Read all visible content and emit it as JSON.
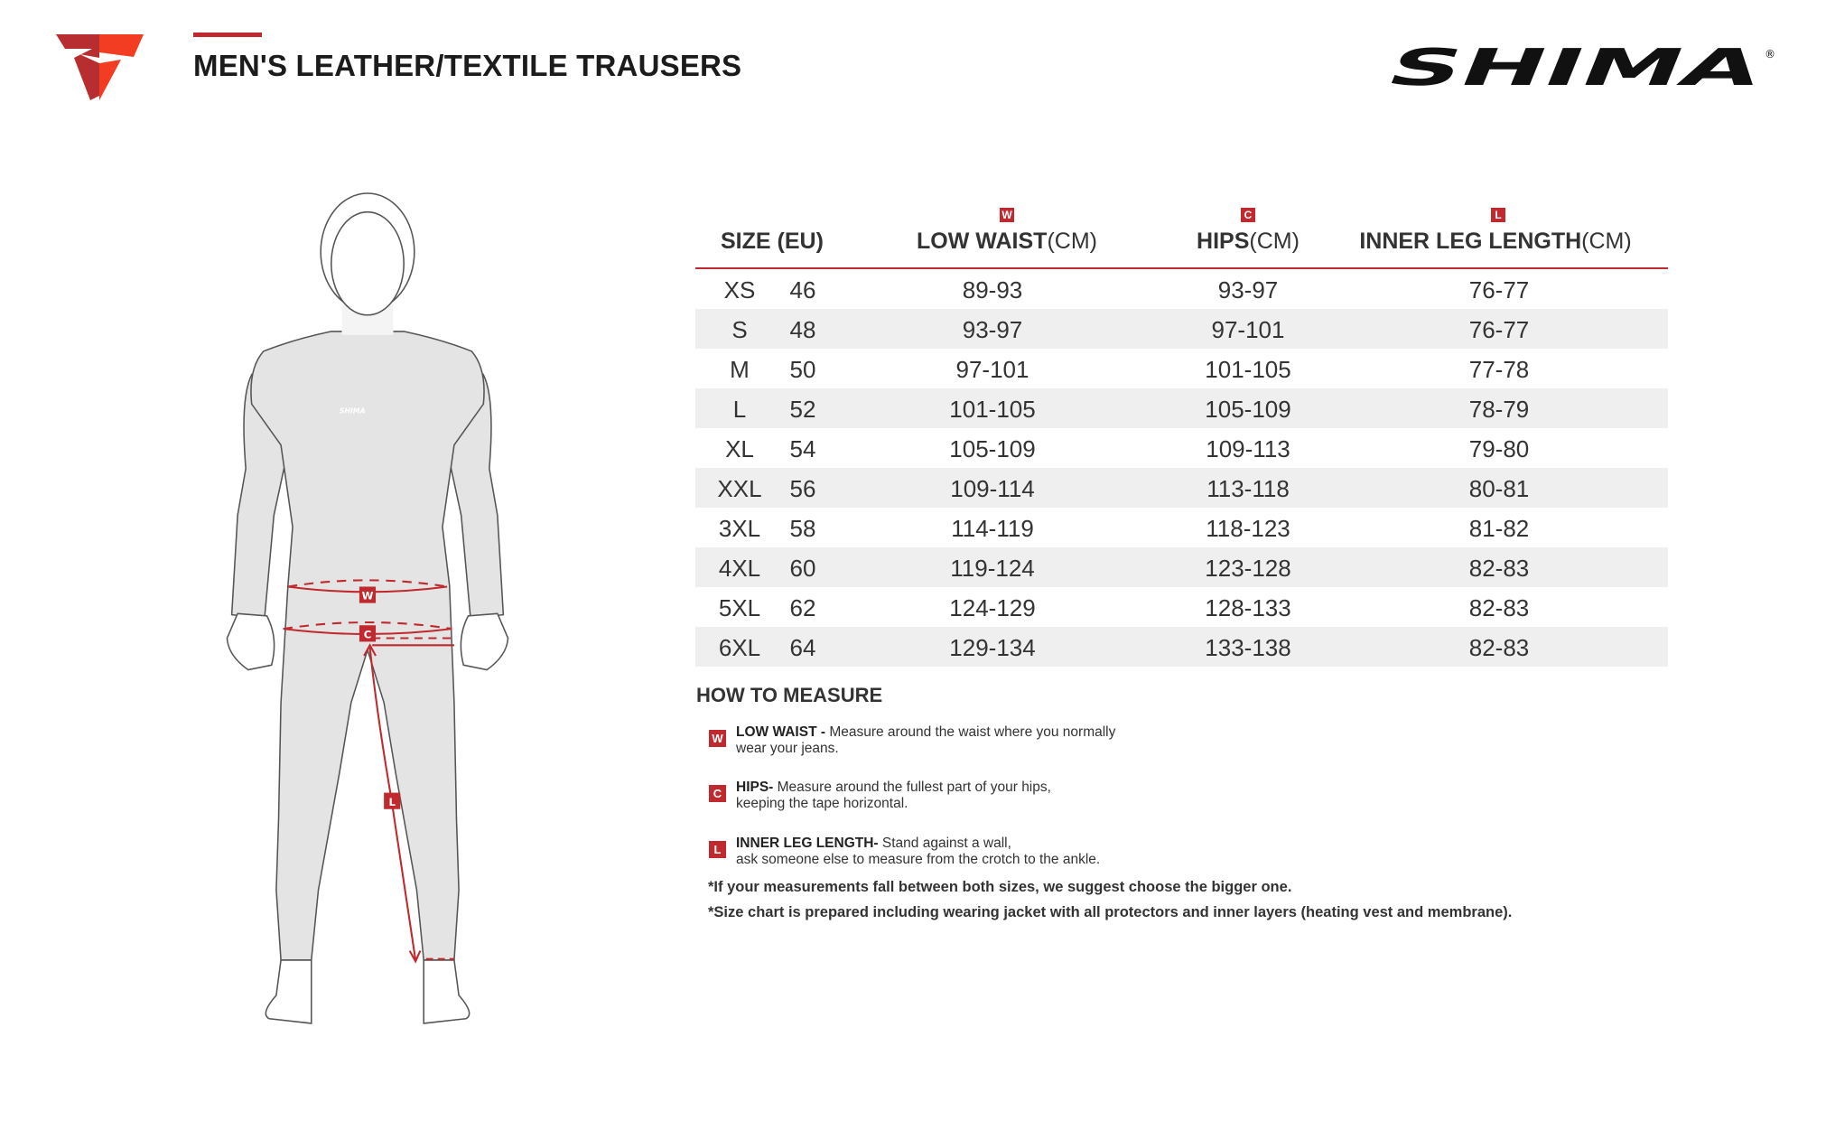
{
  "header": {
    "title": "MEN'S LEATHER/TEXTILE TRAUSERS",
    "brand_logo": "SHIMA",
    "brand_mark": "®",
    "accent_color": "#c0292d"
  },
  "table": {
    "columns": {
      "size": "SIZE (EU)",
      "waist": {
        "badge": "W",
        "label": "LOW WAIST",
        "unit": "(CM)"
      },
      "hips": {
        "badge": "C",
        "label": "HIPS",
        "unit": "(CM)"
      },
      "leg": {
        "badge": "L",
        "label": "INNER LEG LENGTH",
        "unit": "(CM)"
      }
    },
    "rows": [
      {
        "size": "XS",
        "eu": "46",
        "waist": "89-93",
        "hips": "93-97",
        "leg": "76-77"
      },
      {
        "size": "S",
        "eu": "48",
        "waist": "93-97",
        "hips": "97-101",
        "leg": "76-77"
      },
      {
        "size": "M",
        "eu": "50",
        "waist": "97-101",
        "hips": "101-105",
        "leg": "77-78"
      },
      {
        "size": "L",
        "eu": "52",
        "waist": "101-105",
        "hips": "105-109",
        "leg": "78-79"
      },
      {
        "size": "XL",
        "eu": "54",
        "waist": "105-109",
        "hips": "109-113",
        "leg": "79-80"
      },
      {
        "size": "XXL",
        "eu": "56",
        "waist": "109-114",
        "hips": "113-118",
        "leg": "80-81"
      },
      {
        "size": "3XL",
        "eu": "58",
        "waist": "114-119",
        "hips": "118-123",
        "leg": "81-82"
      },
      {
        "size": "4XL",
        "eu": "60",
        "waist": "119-124",
        "hips": "123-128",
        "leg": "82-83"
      },
      {
        "size": "5XL",
        "eu": "62",
        "waist": "124-129",
        "hips": "128-133",
        "leg": "82-83"
      },
      {
        "size": "6XL",
        "eu": "64",
        "waist": "129-134",
        "hips": "133-138",
        "leg": "82-83"
      }
    ]
  },
  "how_to": {
    "title": "HOW TO MEASURE",
    "items": [
      {
        "badge": "W",
        "label": "LOW WAIST -",
        "line1": " Measure around the waist where you normally",
        "line2": "wear your jeans."
      },
      {
        "badge": "C",
        "label": "HIPS-",
        "line1": " Measure around the fullest part of your hips,",
        "line2": "keeping the tape horizontal."
      },
      {
        "badge": "L",
        "label": "INNER LEG LENGTH-",
        "line1": " Stand against a wall,",
        "line2": "ask someone else to measure from the crotch to the ankle."
      }
    ],
    "notes": [
      "*If your measurements fall between both sizes, we suggest choose the bigger one.",
      "*Size chart is prepared including wearing jacket with all protectors and inner layers (heating vest and membrane)."
    ]
  },
  "figure": {
    "badges": [
      "W",
      "C",
      "L"
    ]
  }
}
